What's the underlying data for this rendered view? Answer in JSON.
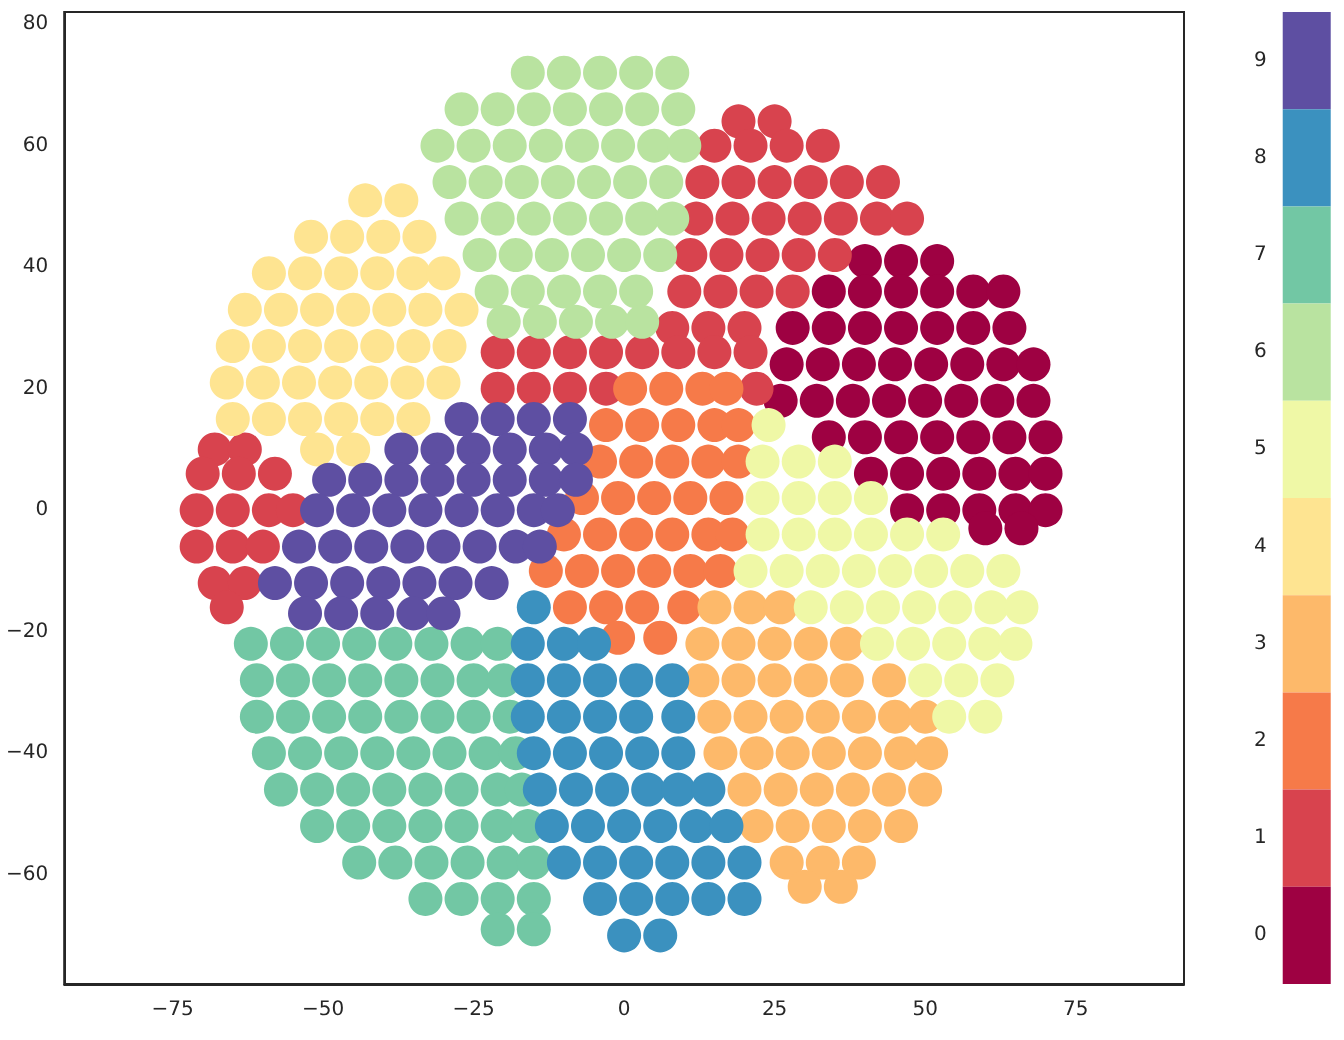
{
  "chart_data": {
    "type": "scatter",
    "marker": "circle",
    "xlim": [
      -93,
      93
    ],
    "xticks": [
      -75,
      -50,
      -25,
      0,
      25,
      50,
      75
    ],
    "ylim": [
      -78,
      82
    ],
    "yticks": [
      -60,
      -40,
      -20,
      0,
      20,
      40,
      60,
      80
    ],
    "clim": [
      -0.5,
      9.5
    ],
    "cticks": [
      0,
      1,
      2,
      3,
      4,
      5,
      6,
      7,
      8,
      9
    ],
    "series": [
      {
        "color": "#9e0142",
        "x": [
          40,
          46,
          52,
          34,
          40,
          46,
          52,
          58,
          63,
          28,
          34,
          40,
          46,
          52,
          58,
          64,
          27,
          33,
          39,
          45,
          51,
          57,
          63,
          68,
          26,
          32,
          38,
          44,
          50,
          56,
          62,
          68,
          34,
          40,
          46,
          52,
          58,
          64,
          70,
          41,
          47,
          53,
          59,
          65,
          70,
          47,
          53,
          59,
          65,
          70,
          60,
          66
        ],
        "values": [
          41,
          41,
          41,
          36,
          36,
          36,
          36,
          36,
          36,
          30,
          30,
          30,
          30,
          30,
          30,
          30,
          24,
          24,
          24,
          24,
          24,
          24,
          24,
          24,
          18,
          18,
          18,
          18,
          18,
          18,
          18,
          18,
          12,
          12,
          12,
          12,
          12,
          12,
          12,
          6,
          6,
          6,
          6,
          6,
          6,
          0,
          0,
          0,
          0,
          0,
          -3,
          -3
        ]
      },
      {
        "color": "#d8434e",
        "x": [
          19,
          25,
          15,
          21,
          27,
          33,
          13,
          19,
          25,
          31,
          37,
          43,
          12,
          18,
          24,
          30,
          36,
          42,
          47,
          11,
          17,
          23,
          29,
          35,
          10,
          16,
          22,
          28,
          8,
          14,
          20,
          -21,
          -15,
          -9,
          -3,
          3,
          9,
          15,
          21,
          -21,
          -15,
          -9,
          -3,
          22,
          -68,
          -63,
          -70,
          -64,
          -58,
          -71,
          -65,
          -59,
          -55,
          -71,
          -65,
          -60,
          -68,
          -63,
          -66
        ],
        "values": [
          64,
          64,
          60,
          60,
          60,
          60,
          54,
          54,
          54,
          54,
          54,
          54,
          48,
          48,
          48,
          48,
          48,
          48,
          48,
          42,
          42,
          42,
          42,
          42,
          36,
          36,
          36,
          36,
          30,
          30,
          30,
          26,
          26,
          26,
          26,
          26,
          26,
          26,
          26,
          20,
          20,
          20,
          20,
          20,
          10,
          10,
          6,
          6,
          6,
          0,
          0,
          0,
          0,
          -6,
          -6,
          -6,
          -12,
          -12,
          -16
        ]
      },
      {
        "color": "#f67a49",
        "x": [
          1,
          7,
          13,
          17,
          -3,
          3,
          9,
          15,
          19,
          -4,
          2,
          8,
          14,
          19,
          -7,
          -1,
          5,
          11,
          17,
          -10,
          -4,
          2,
          8,
          14,
          18,
          -13,
          -7,
          -1,
          5,
          11,
          16,
          -9,
          -3,
          3,
          10,
          -1,
          6
        ],
        "values": [
          20,
          20,
          20,
          20,
          14,
          14,
          14,
          14,
          14,
          8,
          8,
          8,
          8,
          8,
          2,
          2,
          2,
          2,
          2,
          -4,
          -4,
          -4,
          -4,
          -4,
          -4,
          -10,
          -10,
          -10,
          -10,
          -10,
          -10,
          -16,
          -16,
          -16,
          -16,
          -21,
          -21
        ]
      },
      {
        "color": "#fdb96a",
        "x": [
          15,
          21,
          26,
          13,
          19,
          25,
          31,
          37,
          13,
          19,
          25,
          31,
          37,
          44,
          15,
          21,
          27,
          33,
          39,
          45,
          50,
          16,
          22,
          28,
          34,
          40,
          46,
          51,
          20,
          26,
          32,
          38,
          44,
          50,
          22,
          28,
          34,
          40,
          46,
          27,
          33,
          39,
          30,
          36
        ],
        "values": [
          -16,
          -16,
          -16,
          -22,
          -22,
          -22,
          -22,
          -22,
          -28,
          -28,
          -28,
          -28,
          -28,
          -28,
          -34,
          -34,
          -34,
          -34,
          -34,
          -34,
          -34,
          -40,
          -40,
          -40,
          -40,
          -40,
          -40,
          -40,
          -46,
          -46,
          -46,
          -46,
          -46,
          -46,
          -52,
          -52,
          -52,
          -52,
          -52,
          -58,
          -58,
          -58,
          -62,
          -62
        ]
      },
      {
        "color": "#fee491",
        "x": [
          -43,
          -37,
          -52,
          -46,
          -40,
          -34,
          -59,
          -53,
          -47,
          -41,
          -35,
          -30,
          -63,
          -57,
          -51,
          -45,
          -39,
          -33,
          -27,
          -65,
          -59,
          -53,
          -47,
          -41,
          -35,
          -29,
          -66,
          -60,
          -54,
          -48,
          -42,
          -36,
          -30,
          -65,
          -59,
          -53,
          -47,
          -41,
          -35,
          -51,
          -45
        ],
        "values": [
          51,
          51,
          45,
          45,
          45,
          45,
          39,
          39,
          39,
          39,
          39,
          39,
          33,
          33,
          33,
          33,
          33,
          33,
          33,
          27,
          27,
          27,
          27,
          27,
          27,
          27,
          21,
          21,
          21,
          21,
          21,
          21,
          21,
          15,
          15,
          15,
          15,
          15,
          15,
          10,
          10
        ]
      },
      {
        "color": "#eff8a6",
        "x": [
          24,
          23,
          29,
          35,
          23,
          29,
          35,
          41,
          23,
          29,
          35,
          41,
          47,
          53,
          21,
          27,
          33,
          39,
          45,
          51,
          57,
          63,
          31,
          37,
          43,
          49,
          55,
          61,
          66,
          42,
          48,
          54,
          60,
          65,
          50,
          56,
          62,
          54,
          60
        ],
        "values": [
          14,
          8,
          8,
          8,
          2,
          2,
          2,
          2,
          -4,
          -4,
          -4,
          -4,
          -4,
          -4,
          -10,
          -10,
          -10,
          -10,
          -10,
          -10,
          -10,
          -10,
          -16,
          -16,
          -16,
          -16,
          -16,
          -16,
          -16,
          -22,
          -22,
          -22,
          -22,
          -22,
          -28,
          -28,
          -28,
          -34,
          -34
        ]
      },
      {
        "color": "#b9e3a0",
        "x": [
          -16,
          -10,
          -4,
          2,
          8,
          -27,
          -21,
          -15,
          -9,
          -3,
          3,
          9,
          -31,
          -25,
          -19,
          -13,
          -7,
          -1,
          5,
          10,
          -29,
          -23,
          -17,
          -11,
          -5,
          1,
          7,
          -27,
          -21,
          -15,
          -9,
          -3,
          3,
          8,
          -24,
          -18,
          -12,
          -6,
          0,
          6,
          -22,
          -16,
          -10,
          -4,
          2,
          -20,
          -14,
          -8,
          -2,
          3
        ],
        "values": [
          72,
          72,
          72,
          72,
          72,
          66,
          66,
          66,
          66,
          66,
          66,
          66,
          60,
          60,
          60,
          60,
          60,
          60,
          60,
          60,
          54,
          54,
          54,
          54,
          54,
          54,
          54,
          48,
          48,
          48,
          48,
          48,
          48,
          48,
          42,
          42,
          42,
          42,
          42,
          42,
          36,
          36,
          36,
          36,
          36,
          31,
          31,
          31,
          31,
          31
        ]
      },
      {
        "color": "#72c7a4",
        "x": [
          -62,
          -56,
          -50,
          -44,
          -38,
          -32,
          -26,
          -21,
          -61,
          -55,
          -49,
          -43,
          -37,
          -31,
          -25,
          -20,
          -61,
          -55,
          -49,
          -43,
          -37,
          -31,
          -25,
          -19,
          -59,
          -53,
          -47,
          -41,
          -35,
          -29,
          -23,
          -18,
          -57,
          -51,
          -45,
          -39,
          -33,
          -27,
          -21,
          -17,
          -51,
          -45,
          -39,
          -33,
          -27,
          -21,
          -16,
          -44,
          -38,
          -32,
          -26,
          -20,
          -15,
          -33,
          -27,
          -21,
          -15,
          -21,
          -15
        ],
        "values": [
          -22,
          -22,
          -22,
          -22,
          -22,
          -22,
          -22,
          -22,
          -28,
          -28,
          -28,
          -28,
          -28,
          -28,
          -28,
          -28,
          -34,
          -34,
          -34,
          -34,
          -34,
          -34,
          -34,
          -34,
          -40,
          -40,
          -40,
          -40,
          -40,
          -40,
          -40,
          -40,
          -46,
          -46,
          -46,
          -46,
          -46,
          -46,
          -46,
          -46,
          -52,
          -52,
          -52,
          -52,
          -52,
          -52,
          -52,
          -58,
          -58,
          -58,
          -58,
          -58,
          -58,
          -64,
          -64,
          -64,
          -64,
          -69,
          -69
        ]
      },
      {
        "color": "#3b91bf",
        "x": [
          -15,
          -16,
          -10,
          -5,
          -16,
          -10,
          -4,
          2,
          8,
          -16,
          -10,
          -4,
          2,
          9,
          -15,
          -9,
          -3,
          3,
          9,
          -14,
          -8,
          -2,
          4,
          9,
          14,
          -12,
          -6,
          0,
          6,
          12,
          17,
          -10,
          -4,
          2,
          8,
          14,
          20,
          -4,
          2,
          8,
          14,
          20,
          0,
          6
        ],
        "values": [
          -16,
          -22,
          -22,
          -22,
          -28,
          -28,
          -28,
          -28,
          -28,
          -34,
          -34,
          -34,
          -34,
          -34,
          -40,
          -40,
          -40,
          -40,
          -40,
          -46,
          -46,
          -46,
          -46,
          -46,
          -46,
          -52,
          -52,
          -52,
          -52,
          -52,
          -52,
          -58,
          -58,
          -58,
          -58,
          -58,
          -58,
          -64,
          -64,
          -64,
          -64,
          -64,
          -70,
          -70
        ]
      },
      {
        "color": "#5e4fa2",
        "x": [
          -27,
          -21,
          -15,
          -9,
          -37,
          -31,
          -25,
          -19,
          -13,
          -8,
          -49,
          -43,
          -37,
          -31,
          -25,
          -19,
          -13,
          -8,
          -51,
          -45,
          -39,
          -33,
          -27,
          -21,
          -15,
          -11,
          -54,
          -48,
          -42,
          -36,
          -30,
          -24,
          -18,
          -14,
          -58,
          -52,
          -46,
          -40,
          -34,
          -28,
          -22,
          -53,
          -47,
          -41,
          -35,
          -30
        ],
        "values": [
          15,
          15,
          15,
          15,
          10,
          10,
          10,
          10,
          10,
          10,
          5,
          5,
          5,
          5,
          5,
          5,
          5,
          5,
          0,
          0,
          0,
          0,
          0,
          0,
          0,
          0,
          -6,
          -6,
          -6,
          -6,
          -6,
          -6,
          -6,
          -6,
          -12,
          -12,
          -12,
          -12,
          -12,
          -12,
          -12,
          -17,
          -17,
          -17,
          -17,
          -17
        ]
      }
    ]
  }
}
